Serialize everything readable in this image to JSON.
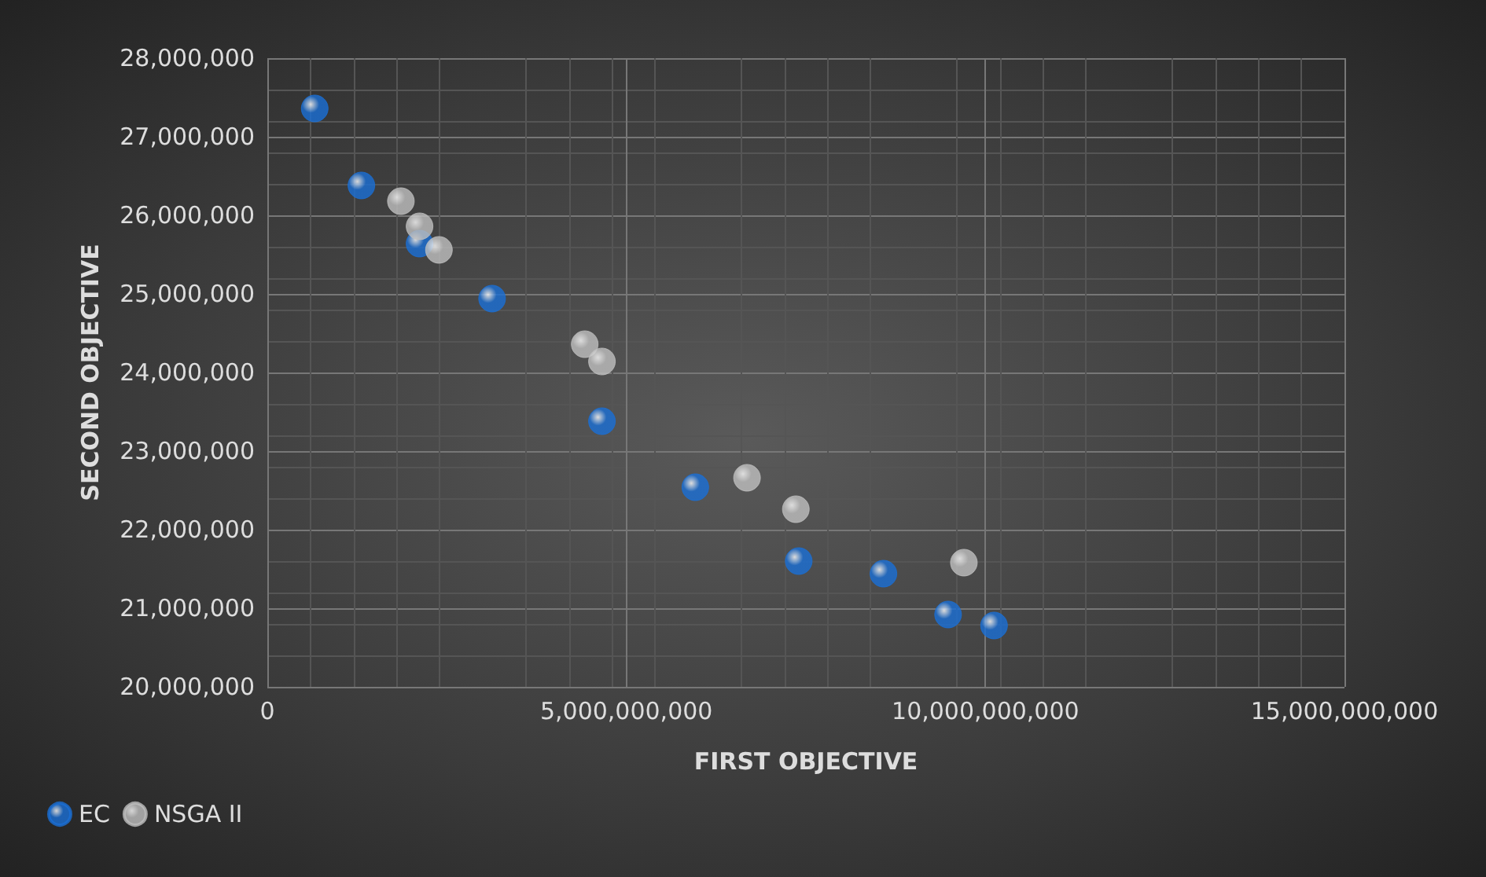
{
  "chart_data": {
    "type": "scatter",
    "xlabel": "FIRST OBJECTIVE",
    "ylabel": "SECOND OBJECTIVE",
    "xlim": [
      0,
      15000000000
    ],
    "xticks": [
      {
        "value": 0,
        "label": "0"
      },
      {
        "value": 5000000000,
        "label": "5,000,000,000"
      },
      {
        "value": 10000000000,
        "label": "10,000,000,000"
      },
      {
        "value": 15000000000,
        "label": "15,000,000,000"
      }
    ],
    "ylim": [
      20000000,
      28000000
    ],
    "yticks": [
      {
        "value": 20000000,
        "label": "20,000,000"
      },
      {
        "value": 21000000,
        "label": "21,000,000"
      },
      {
        "value": 22000000,
        "label": "22,000,000"
      },
      {
        "value": 23000000,
        "label": "23,000,000"
      },
      {
        "value": 24000000,
        "label": "24,000,000"
      },
      {
        "value": 25000000,
        "label": "25,000,000"
      },
      {
        "value": 26000000,
        "label": "26,000,000"
      },
      {
        "value": 27000000,
        "label": "27,000,000"
      },
      {
        "value": 28000000,
        "label": "28,000,000"
      }
    ],
    "grid": true,
    "legend": "bottom left",
    "marker": "circle",
    "series": [
      {
        "name": "EC",
        "color": "#1a6fd6",
        "x": [
          660000000,
          1310000000,
          2120000000,
          3130000000,
          4660000000,
          5960000000,
          7400000000,
          8580000000,
          9480000000,
          10120000000
        ],
        "values": [
          27360000,
          26380000,
          25640000,
          24940000,
          23380000,
          22540000,
          21600000,
          21440000,
          20920000,
          20780000
        ]
      },
      {
        "name": "NSGA II",
        "color": "#bfbfbf",
        "x": [
          1860000000,
          2120000000,
          2390000000,
          4420000000,
          4660000000,
          6680000000,
          7360000000,
          9700000000
        ],
        "values": [
          26180000,
          25860000,
          25560000,
          24360000,
          24140000,
          22660000,
          22260000,
          21580000
        ]
      }
    ]
  }
}
